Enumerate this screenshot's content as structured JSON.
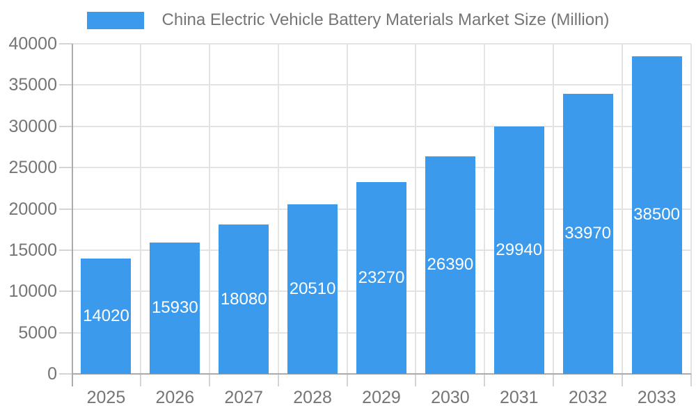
{
  "legend": {
    "label": "China Electric Vehicle Battery Materials Market Size (Million)",
    "swatch_color": "#3c9aec"
  },
  "chart_data": {
    "type": "bar",
    "title": "China Electric Vehicle Battery Materials Market Size (Million)",
    "categories": [
      "2025",
      "2026",
      "2027",
      "2028",
      "2029",
      "2030",
      "2031",
      "2032",
      "2033"
    ],
    "values": [
      14020,
      15930,
      18080,
      20510,
      23270,
      26390,
      29940,
      33970,
      38500
    ],
    "value_labels": [
      "14020",
      "15930",
      "18080",
      "20510",
      "23270",
      "26390",
      "29940",
      "33970",
      "38500"
    ],
    "xlabel": "",
    "ylabel": "",
    "ylim": [
      0,
      40000
    ],
    "yticks": [
      0,
      5000,
      10000,
      15000,
      20000,
      25000,
      30000,
      35000,
      40000
    ],
    "ytick_labels": [
      "0",
      "5000",
      "10000",
      "15000",
      "20000",
      "25000",
      "30000",
      "35000",
      "40000"
    ],
    "grid": true,
    "legend_position": "top",
    "colors": {
      "bar": "#3c9aec",
      "grid": "#e3e3e3",
      "tick": "#d4d4d4",
      "axis": "#ababab",
      "text": "#757575",
      "value_label": "#ffffff",
      "background": "#ffffff"
    }
  }
}
